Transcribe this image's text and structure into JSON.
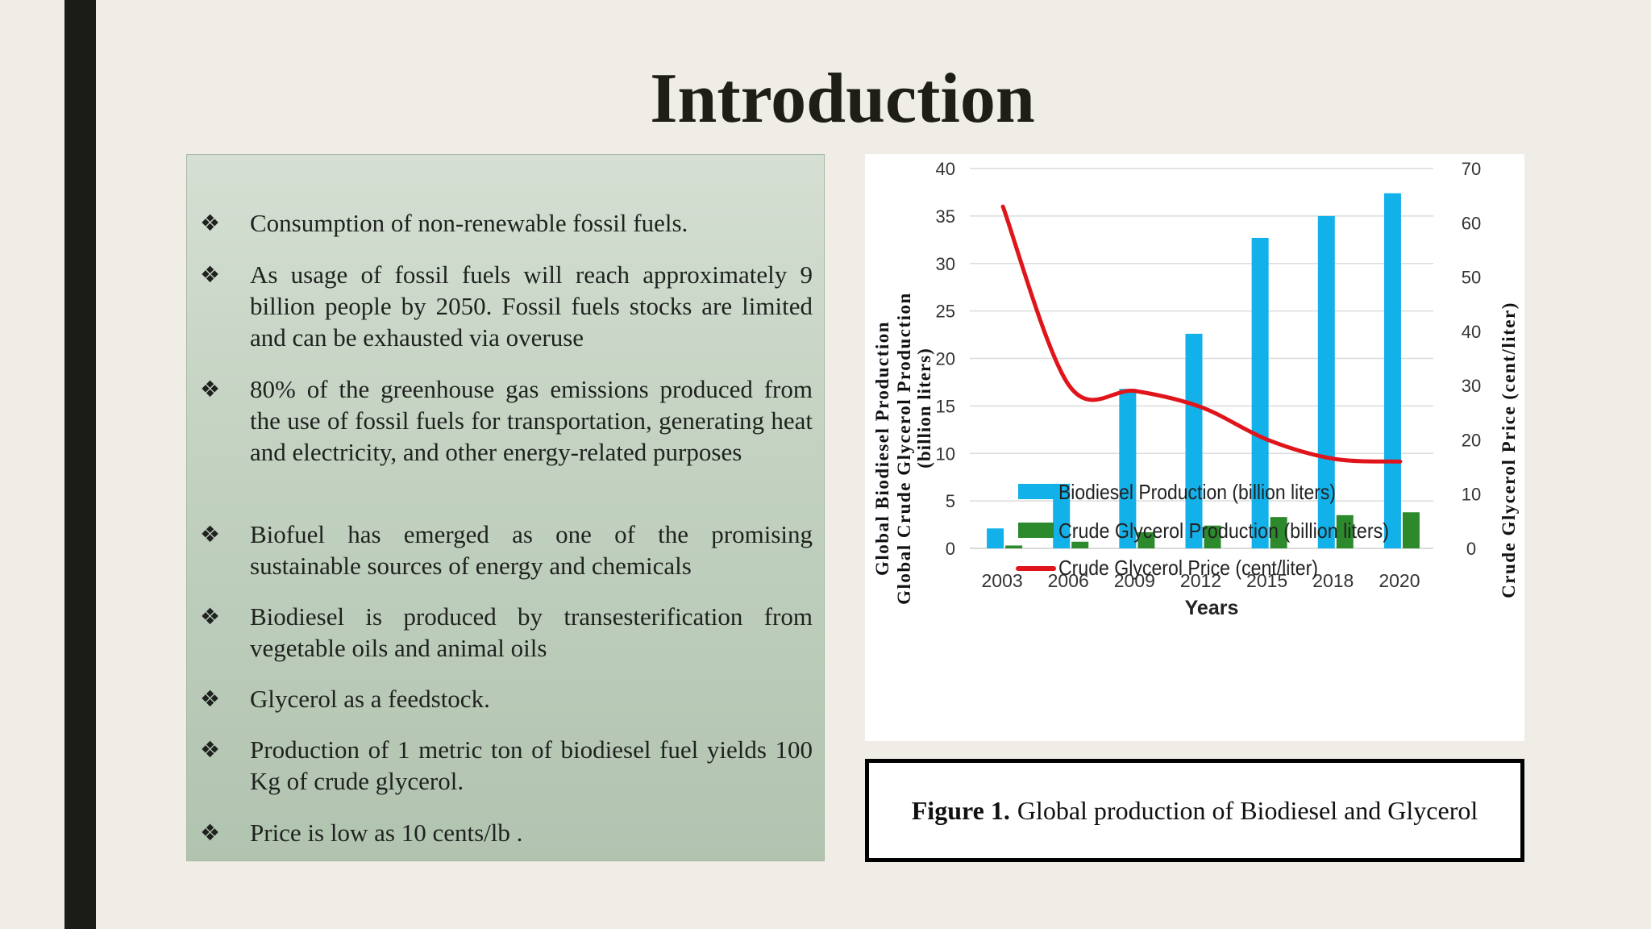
{
  "slide": {
    "title": "Introduction"
  },
  "bullets": [
    {
      "marker": "❖",
      "text": "Consumption of non-renewable fossil fuels."
    },
    {
      "marker": "❖",
      "text": "As usage of fossil fuels will reach approximately 9 billion people by 2050. Fossil fuels stocks are limited and can be exhausted via overuse"
    },
    {
      "marker": "❖",
      "text": "80% of the greenhouse gas emissions produced from the use of fossil fuels for transportation, generating heat and electricity, and other energy-related purposes"
    },
    {
      "marker": "❖",
      "text": "Biofuel has emerged as one of the promising sustainable sources of energy and chemicals"
    },
    {
      "marker": "❖",
      "text": "Biodiesel is produced by transesterification from vegetable oils and animal oils"
    },
    {
      "marker": "❖",
      "text": "Glycerol as a feedstock."
    },
    {
      "marker": "❖",
      "text": "Production of 1 metric ton of biodiesel fuel yields 100 Kg of crude glycerol."
    },
    {
      "marker": "❖",
      "text": "Price is low as 10 cents/lb ."
    }
  ],
  "caption": {
    "label": "Figure 1.",
    "text": "Global production of Biodiesel and Glycerol"
  },
  "chart_data": {
    "type": "bar",
    "categories": [
      "2003",
      "2006",
      "2009",
      "2012",
      "2015",
      "2018",
      "2020"
    ],
    "series": [
      {
        "name": "Biodiesel Production (billion liters)",
        "kind": "bar",
        "axis": "left",
        "color": "#12b1ea",
        "values": [
          2.1,
          6.8,
          16.8,
          22.6,
          32.7,
          35.0,
          37.4
        ]
      },
      {
        "name": "Crude Glycerol Production (billion liters)",
        "kind": "bar",
        "axis": "left",
        "color": "#2c8a2c",
        "values": [
          0.3,
          0.7,
          1.7,
          2.4,
          3.3,
          3.5,
          3.8
        ]
      },
      {
        "name": "Crude Glycerol Price (cent/liter)",
        "kind": "line",
        "axis": "right",
        "color": "#e0151b",
        "values": [
          63,
          30,
          29,
          26,
          20,
          16.5,
          16
        ]
      }
    ],
    "xlabel": "Years",
    "ylabel_left_line1": "Global Biodiesel Production",
    "ylabel_left_line2": "Global Crude Glycerol Production",
    "ylabel_left_line3": "(billion liters)",
    "ylabel_right": "Crude Glycerol Price (cent/liter)",
    "ylim_left": [
      0,
      40
    ],
    "ylim_right": [
      0,
      70
    ],
    "yticks_left": [
      "0",
      "5",
      "10",
      "15",
      "20",
      "25",
      "30",
      "35",
      "40"
    ],
    "yticks_right": [
      "0",
      "10",
      "20",
      "30",
      "40",
      "50",
      "60",
      "70"
    ],
    "grid": true,
    "legend": "bottom"
  }
}
